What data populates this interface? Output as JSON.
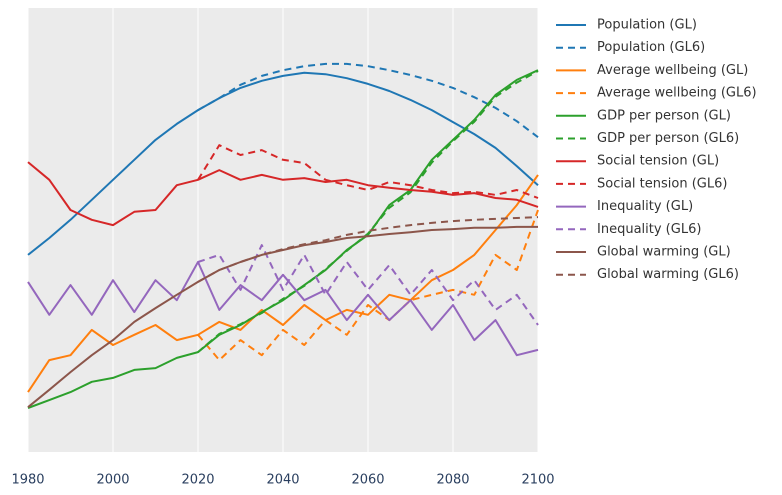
{
  "chart_data": {
    "type": "line",
    "x": [
      1980,
      1985,
      1990,
      1995,
      2000,
      2005,
      2010,
      2015,
      2020,
      2025,
      2030,
      2035,
      2040,
      2045,
      2050,
      2055,
      2060,
      2065,
      2070,
      2075,
      2080,
      2085,
      2090,
      2095,
      2100
    ],
    "xlim": [
      1980,
      2100
    ],
    "xticks": [
      1980,
      2000,
      2020,
      2040,
      2060,
      2080,
      2100
    ],
    "ylim": [
      0,
      100
    ],
    "grid": true,
    "legend": "right",
    "series": [
      {
        "name": "Population (GL)",
        "color": "#1f77b4",
        "linestyle": "solid",
        "values": [
          44.4,
          48.2,
          52.3,
          56.8,
          61.3,
          65.8,
          70.3,
          73.9,
          77.0,
          79.7,
          82.0,
          83.6,
          84.7,
          85.4,
          85.1,
          84.2,
          82.9,
          81.3,
          79.3,
          77.0,
          74.3,
          71.6,
          68.5,
          64.4,
          60.1
        ]
      },
      {
        "name": "Population (GL6)",
        "color": "#1f77b4",
        "linestyle": "dashed",
        "values": [
          null,
          null,
          null,
          null,
          null,
          null,
          null,
          null,
          77.0,
          79.7,
          82.7,
          84.7,
          86.0,
          86.9,
          87.4,
          87.4,
          86.9,
          86.0,
          84.9,
          83.6,
          82.0,
          79.9,
          77.5,
          74.5,
          70.9
        ]
      },
      {
        "name": "Average wellbeing (GL)",
        "color": "#ff7f0e",
        "linestyle": "solid",
        "values": [
          13.5,
          20.7,
          21.8,
          27.5,
          24.1,
          26.4,
          28.6,
          25.2,
          26.4,
          29.3,
          27.5,
          32.0,
          28.6,
          33.1,
          29.7,
          32.0,
          30.9,
          35.4,
          34.2,
          38.7,
          41.0,
          44.4,
          50.0,
          55.6,
          62.4
        ]
      },
      {
        "name": "Average wellbeing (GL6)",
        "color": "#ff7f0e",
        "linestyle": "dashed",
        "values": [
          null,
          null,
          null,
          null,
          null,
          null,
          null,
          null,
          26.4,
          20.7,
          25.2,
          21.8,
          27.5,
          24.1,
          29.7,
          26.4,
          33.1,
          29.7,
          34.2,
          35.4,
          36.5,
          35.4,
          44.4,
          41.0,
          54.5
        ]
      },
      {
        "name": "GDP per person (GL)",
        "color": "#2ca02c",
        "linestyle": "solid",
        "values": [
          9.9,
          11.7,
          13.5,
          15.8,
          16.7,
          18.5,
          18.9,
          21.2,
          22.5,
          26.4,
          28.6,
          31.5,
          34.2,
          37.6,
          41.0,
          45.5,
          48.9,
          55.6,
          59.0,
          65.8,
          70.3,
          74.8,
          80.4,
          83.8,
          86.0
        ]
      },
      {
        "name": "GDP per person (GL6)",
        "color": "#2ca02c",
        "linestyle": "dashed",
        "values": [
          null,
          null,
          null,
          null,
          null,
          null,
          null,
          null,
          22.5,
          26.6,
          28.8,
          31.3,
          34.5,
          37.4,
          41.2,
          45.3,
          49.2,
          55.0,
          58.5,
          65.2,
          70.0,
          74.4,
          80.0,
          83.2,
          85.8
        ]
      },
      {
        "name": "Social tension (GL)",
        "color": "#d62728",
        "linestyle": "solid",
        "values": [
          65.3,
          61.3,
          54.5,
          52.3,
          51.1,
          54.1,
          54.5,
          60.1,
          61.3,
          63.5,
          61.3,
          62.4,
          61.3,
          61.7,
          60.8,
          61.3,
          60.1,
          59.5,
          59.0,
          58.6,
          57.9,
          58.3,
          57.2,
          56.8,
          55.2
        ]
      },
      {
        "name": "Social tension (GL6)",
        "color": "#d62728",
        "linestyle": "dashed",
        "values": [
          null,
          null,
          null,
          null,
          null,
          null,
          null,
          null,
          61.3,
          69.1,
          66.9,
          68.0,
          65.8,
          65.1,
          61.3,
          60.1,
          59.0,
          60.8,
          60.1,
          59.0,
          58.3,
          58.6,
          57.9,
          59.0,
          57.2
        ]
      },
      {
        "name": "Inequality (GL)",
        "color": "#9467bd",
        "linestyle": "solid",
        "values": [
          38.3,
          30.9,
          37.6,
          30.9,
          38.7,
          31.5,
          38.7,
          34.2,
          42.8,
          32.0,
          37.6,
          34.2,
          39.9,
          34.2,
          36.5,
          29.7,
          35.4,
          29.7,
          34.2,
          27.5,
          33.1,
          25.2,
          29.7,
          21.8,
          23.0
        ]
      },
      {
        "name": "Inequality (GL6)",
        "color": "#9467bd",
        "linestyle": "dashed",
        "values": [
          null,
          null,
          null,
          null,
          null,
          null,
          null,
          null,
          42.8,
          44.4,
          36.5,
          46.6,
          36.5,
          44.4,
          35.4,
          42.8,
          36.5,
          42.1,
          35.4,
          41.0,
          34.2,
          38.7,
          32.0,
          35.4,
          28.6
        ]
      },
      {
        "name": "Global warming (GL)",
        "color": "#8c564b",
        "linestyle": "solid",
        "values": [
          10.1,
          14.0,
          18.0,
          21.8,
          25.2,
          29.3,
          32.4,
          35.4,
          38.3,
          41.0,
          42.8,
          44.4,
          45.5,
          46.6,
          47.3,
          48.2,
          48.6,
          49.1,
          49.5,
          50.0,
          50.2,
          50.5,
          50.5,
          50.7,
          50.7
        ]
      },
      {
        "name": "Global warming (GL6)",
        "color": "#8c564b",
        "linestyle": "dashed",
        "values": [
          null,
          null,
          null,
          null,
          null,
          null,
          null,
          null,
          38.3,
          41.0,
          42.8,
          44.4,
          45.7,
          46.8,
          47.7,
          48.9,
          49.8,
          50.5,
          51.1,
          51.6,
          52.0,
          52.3,
          52.5,
          52.7,
          52.9
        ]
      }
    ]
  }
}
